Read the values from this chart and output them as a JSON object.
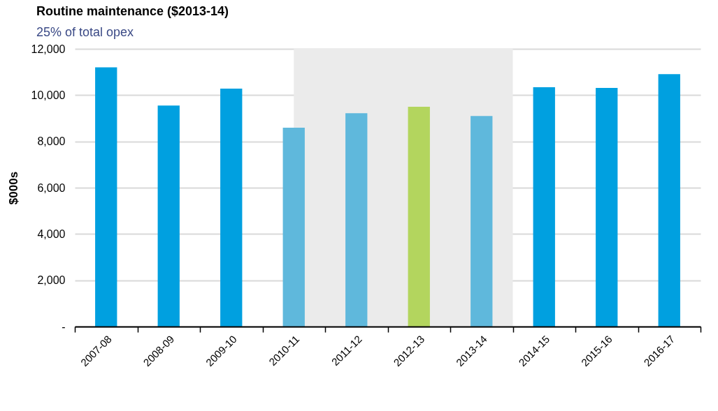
{
  "chart_data": {
    "type": "bar",
    "title": "Routine maintenance ($2013-14)",
    "subtitle": "25% of total opex",
    "ylabel": "$000s",
    "categories": [
      "2007-08",
      "2008-09",
      "2009-10",
      "2010-11",
      "2011-12",
      "2012-13",
      "2013-14",
      "2014-15",
      "2015-16",
      "2016-17"
    ],
    "values": [
      11200,
      9550,
      10280,
      8590,
      9220,
      9500,
      9100,
      10340,
      10310,
      10910
    ],
    "colors": [
      "#00a0e0",
      "#00a0e0",
      "#00a0e0",
      "#5fb8dc",
      "#5fb8dc",
      "#b3d55e",
      "#5fb8dc",
      "#00a0e0",
      "#00a0e0",
      "#00a0e0"
    ],
    "ylim": [
      0,
      12000
    ],
    "yticks": [
      {
        "value": 0,
        "label": "-"
      },
      {
        "value": 2000,
        "label": "2,000"
      },
      {
        "value": 4000,
        "label": "4,000"
      },
      {
        "value": 6000,
        "label": "6,000"
      },
      {
        "value": 8000,
        "label": "8,000"
      },
      {
        "value": 10000,
        "label": "10,000"
      },
      {
        "value": 12000,
        "label": "12,000"
      }
    ],
    "bands": [
      {
        "axis": "x",
        "from": "2010-11",
        "to": "2013-14",
        "color": "#ebebeb"
      }
    ],
    "grid": "y",
    "legend": false
  }
}
